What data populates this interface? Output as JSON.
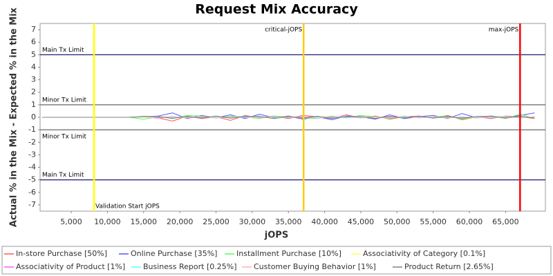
{
  "chart_data": {
    "type": "line",
    "title": "Request Mix Accuracy",
    "x_label": "jOPS",
    "y_label": "Actual % in the Mix - Expected % in the Mix",
    "xlim": [
      700,
      70500
    ],
    "ylim": [
      -7.5,
      7.5
    ],
    "xticks": [
      {
        "value": 5000,
        "label": "5,000"
      },
      {
        "value": 10000,
        "label": "10,000"
      },
      {
        "value": 15000,
        "label": "15,000"
      },
      {
        "value": 20000,
        "label": "20,000"
      },
      {
        "value": 25000,
        "label": "25,000"
      },
      {
        "value": 30000,
        "label": "30,000"
      },
      {
        "value": 35000,
        "label": "35,000"
      },
      {
        "value": 40000,
        "label": "40,000"
      },
      {
        "value": 45000,
        "label": "45,000"
      },
      {
        "value": 50000,
        "label": "50,000"
      },
      {
        "value": 55000,
        "label": "55,000"
      },
      {
        "value": 60000,
        "label": "60,000"
      },
      {
        "value": 65000,
        "label": "65,000"
      }
    ],
    "yticks": [
      -7,
      -6,
      -5,
      -4,
      -3,
      -2,
      -1,
      0,
      1,
      2,
      3,
      4,
      5,
      6,
      7
    ],
    "thresholds": [
      {
        "label": "Main Tx Limit",
        "value": 5,
        "color": "#000066"
      },
      {
        "label": "Minor Tx Limit",
        "value": 1,
        "color": "#666666"
      },
      {
        "label": "Minor Tx Limit",
        "value": -1,
        "color": "#666666"
      },
      {
        "label": "Main Tx Limit",
        "value": -5,
        "color": "#000066"
      }
    ],
    "markers": [
      {
        "label": "Validation Start jOPS",
        "value": 8150,
        "color": "#ffff00"
      },
      {
        "label": "critical-jOPS",
        "value": 37100,
        "color": "#ffcc00"
      },
      {
        "label": "max-jOPS",
        "value": 67000,
        "color": "#ff0000"
      }
    ],
    "x": [
      1000,
      3000,
      5000,
      7000,
      9000,
      11000,
      13000,
      15000,
      17000,
      19000,
      21000,
      23000,
      25000,
      27000,
      29000,
      31000,
      33000,
      35000,
      37000,
      39000,
      41000,
      43000,
      45000,
      47000,
      49000,
      51000,
      53000,
      55000,
      57000,
      59000,
      61000,
      63000,
      65000,
      67000,
      69000
    ],
    "series": [
      {
        "name": "In-store Purchase [50%]",
        "color": "#ff5555",
        "values": [
          0,
          0,
          0,
          0,
          0,
          0,
          0,
          0.02,
          -0.05,
          -0.3,
          0.1,
          -0.1,
          0.05,
          -0.25,
          0.15,
          -0.05,
          0.1,
          -0.1,
          0.15,
          0.05,
          -0.1,
          0.2,
          -0.05,
          0.1,
          -0.15,
          0.05,
          0.1,
          -0.05,
          0.15,
          -0.2,
          0.05,
          -0.1,
          0.1,
          0.05,
          -0.1
        ]
      },
      {
        "name": "Online Purchase [35%]",
        "color": "#5555ff",
        "values": [
          0,
          0,
          0,
          0,
          0,
          0,
          0,
          0.05,
          0.1,
          0.35,
          -0.1,
          0.15,
          -0.05,
          0.2,
          -0.1,
          0.25,
          -0.05,
          0.1,
          -0.15,
          0.05,
          -0.2,
          0.1,
          0.05,
          -0.15,
          0.2,
          -0.1,
          0.05,
          0.15,
          -0.1,
          0.3,
          -0.05,
          0.1,
          -0.05,
          0.15,
          0.35
        ]
      },
      {
        "name": "Installment Purchase [10%]",
        "color": "#55ff55",
        "values": [
          0,
          0,
          0,
          0,
          0,
          0,
          0,
          -0.15,
          0.05,
          -0.1,
          0.15,
          0.1,
          -0.05,
          0.1,
          0.05,
          -0.1,
          0.1,
          0.05,
          -0.05,
          -0.1,
          0.1,
          -0.05,
          0.15,
          0.05,
          -0.1,
          0.1,
          -0.05,
          0.05,
          0.1,
          -0.15,
          0.05,
          0.1,
          -0.1,
          0.25,
          -0.1
        ]
      },
      {
        "name": "Associativity of Category [0.1%]",
        "color": "#ffff55",
        "values": [
          0,
          0,
          0,
          0,
          0,
          0,
          0,
          0.01,
          -0.01,
          0.02,
          -0.02,
          0.01,
          0,
          0.01,
          -0.01,
          0.02,
          0,
          -0.01,
          0.01,
          0,
          -0.02,
          0.01,
          0,
          0.01,
          -0.01,
          0,
          0.02,
          -0.01,
          0,
          0.01,
          -0.01,
          0,
          0.01,
          0,
          -0.01
        ]
      },
      {
        "name": "Associativity of Product [1%]",
        "color": "#ff55ff",
        "values": [
          0,
          0,
          0,
          0,
          0,
          0,
          0,
          0.03,
          -0.02,
          0.05,
          -0.04,
          0.02,
          0.03,
          -0.05,
          0.04,
          -0.02,
          0.03,
          -0.03,
          0.02,
          0.04,
          -0.03,
          0.02,
          -0.04,
          0.03,
          0.02,
          -0.03,
          0.04,
          -0.02,
          0.03,
          -0.04,
          0.02,
          0.03,
          -0.02,
          0.04,
          -0.03
        ]
      },
      {
        "name": "Business Report [0.25%]",
        "color": "#55ffff",
        "values": [
          0,
          0,
          0,
          0,
          0,
          0,
          0,
          0.02,
          0.04,
          -0.03,
          0.02,
          -0.02,
          0.03,
          0.01,
          -0.03,
          0.02,
          -0.01,
          0.03,
          -0.02,
          0.01,
          0.02,
          -0.03,
          0.01,
          0.02,
          -0.02,
          0.03,
          -0.01,
          0.02,
          -0.03,
          0.01,
          0.02,
          -0.02,
          0.03,
          -0.01,
          0.02
        ]
      },
      {
        "name": "Customer Buying Behavior [1%]",
        "color": "#ffafaf",
        "values": [
          0,
          0,
          0,
          0,
          0,
          0,
          0,
          0.05,
          -0.08,
          0.06,
          -0.05,
          0.07,
          -0.06,
          0.04,
          0.08,
          -0.07,
          0.05,
          -0.04,
          0.06,
          -0.08,
          0.05,
          0.07,
          -0.06,
          0.04,
          -0.05,
          0.08,
          -0.04,
          0.06,
          -0.07,
          0.05,
          -0.06,
          0.04,
          0.07,
          -0.05,
          0.06
        ]
      },
      {
        "name": "Product Return [2.65%]",
        "color": "#808080",
        "values": [
          0,
          0,
          0,
          0,
          0,
          0,
          0,
          0.08,
          0.06,
          -0.08,
          0.07,
          -0.06,
          0.1,
          -0.07,
          0.06,
          0.08,
          -0.1,
          0.07,
          -0.06,
          0.09,
          -0.08,
          0.06,
          0.07,
          -0.09,
          0.08,
          -0.06,
          0.1,
          -0.07,
          0.06,
          -0.08,
          0.07,
          0.09,
          -0.06,
          0.08,
          -0.07
        ]
      }
    ]
  }
}
